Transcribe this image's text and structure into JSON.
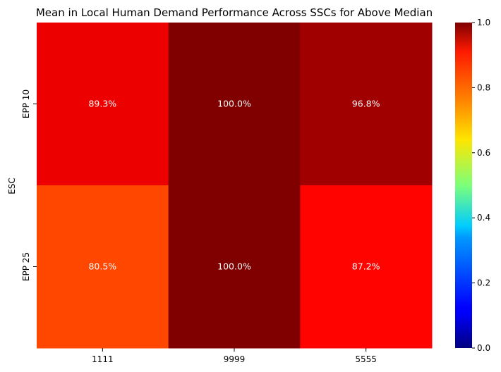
{
  "chart_data": {
    "type": "heatmap",
    "title": "Mean in Local Human Demand Performance Across SSCs for Above Median",
    "xlabel": "",
    "ylabel": "ESC",
    "x_categories": [
      "1111",
      "9999",
      "5555"
    ],
    "y_categories": [
      "EPP 10",
      "EPP 25"
    ],
    "values": [
      [
        0.893,
        1.0,
        0.968
      ],
      [
        0.805,
        1.0,
        0.872
      ]
    ],
    "cell_labels": [
      [
        "89.3%",
        "100.0%",
        "96.8%"
      ],
      [
        "80.5%",
        "100.0%",
        "87.2%"
      ]
    ],
    "colormap": "jet",
    "colorbar": {
      "range": [
        0.0,
        1.0
      ],
      "ticks": [
        "0.0",
        "0.2",
        "0.4",
        "0.6",
        "0.8",
        "1.0"
      ],
      "tick_values": [
        0.0,
        0.2,
        0.4,
        0.6,
        0.8,
        1.0
      ]
    }
  }
}
